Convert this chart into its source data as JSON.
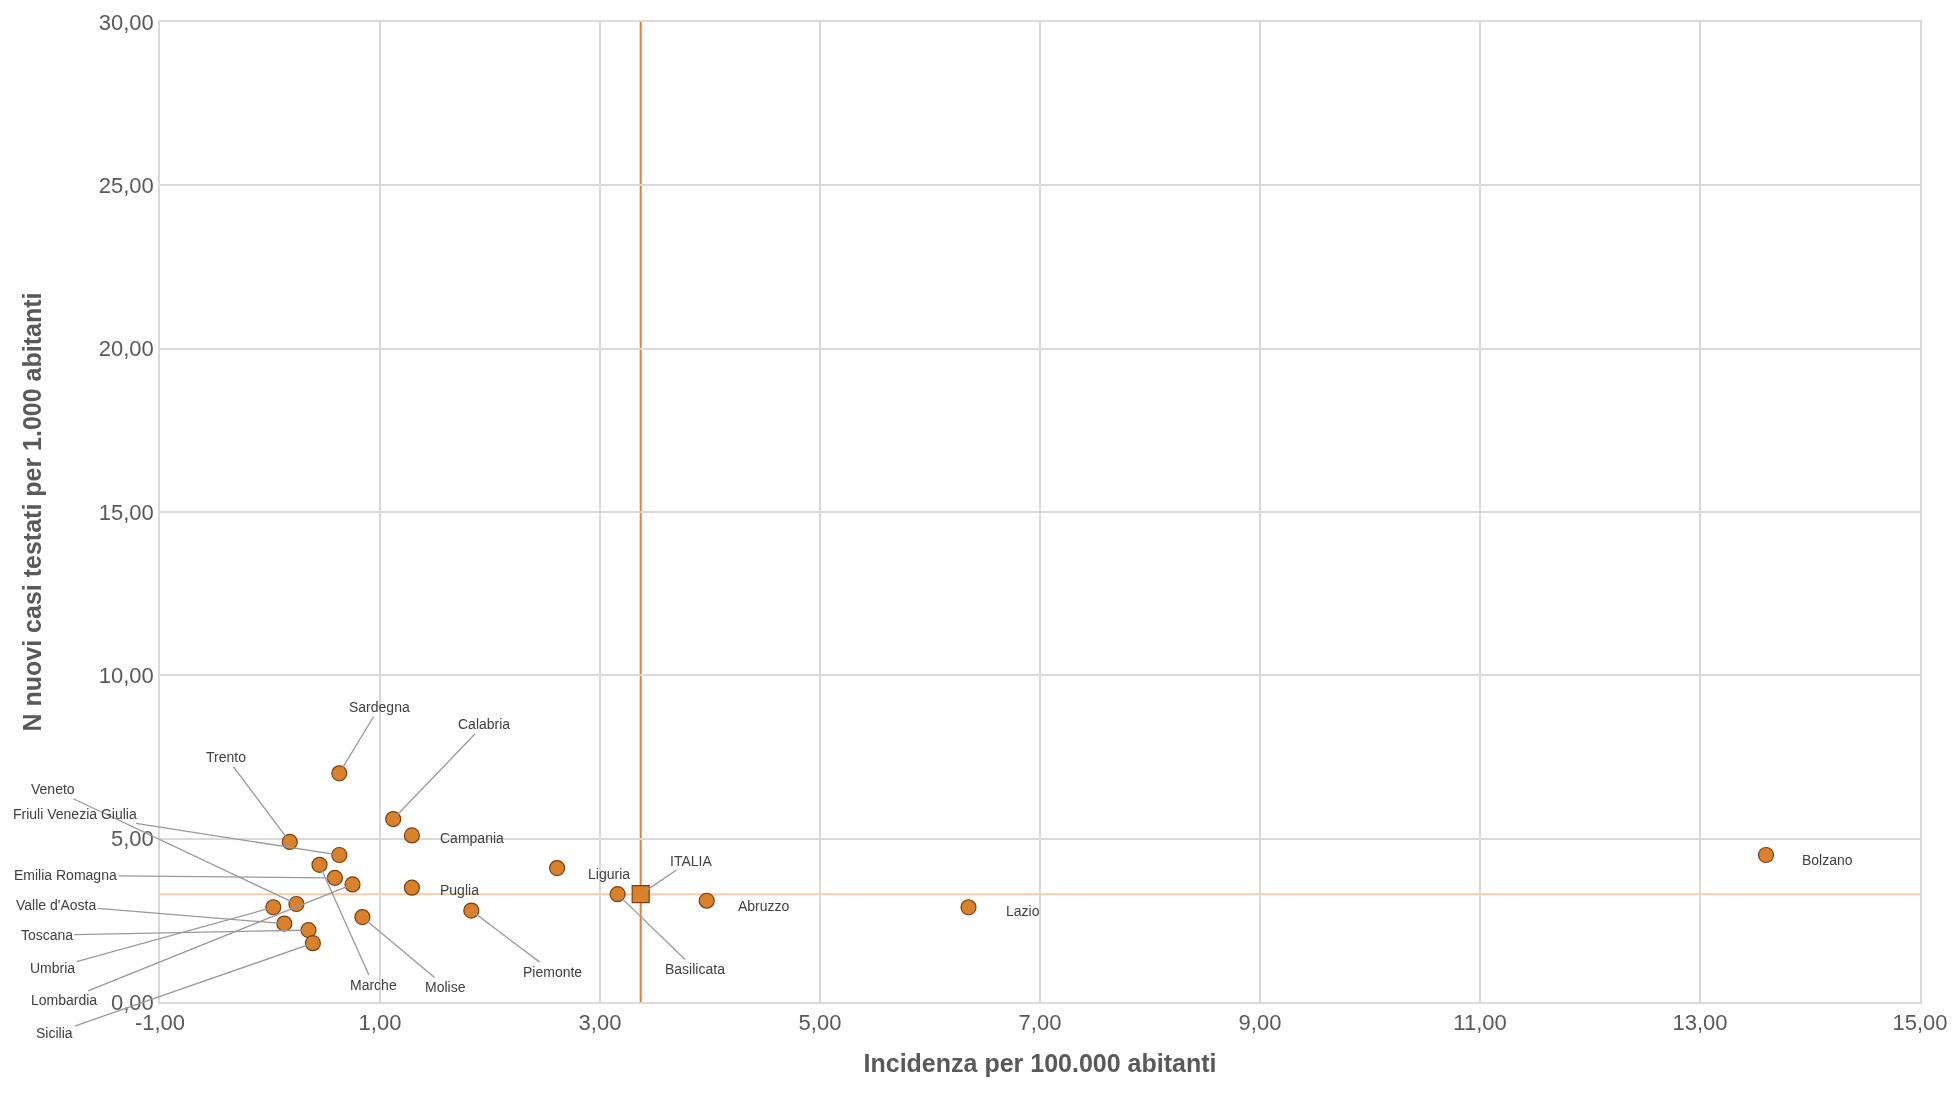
{
  "chart_data": {
    "type": "scatter",
    "xlabel": "Incidenza per 100.000 abitanti",
    "ylabel": "N nuovi casi testati per 1.000 abitanti",
    "xlim": [
      -1,
      15
    ],
    "xticks": [
      {
        "value": -1,
        "label": "-1,00"
      },
      {
        "value": 1,
        "label": "1,00"
      },
      {
        "value": 3,
        "label": "3,00"
      },
      {
        "value": 5,
        "label": "5,00"
      },
      {
        "value": 7,
        "label": "7,00"
      },
      {
        "value": 9,
        "label": "9,00"
      },
      {
        "value": 11,
        "label": "11,00"
      },
      {
        "value": 13,
        "label": "13,00"
      },
      {
        "value": 15,
        "label": "15,00"
      }
    ],
    "ylim": [
      0,
      30
    ],
    "yticks": [
      {
        "value": 0,
        "label": "0,00"
      },
      {
        "value": 5,
        "label": "5,00"
      },
      {
        "value": 10,
        "label": "10,00"
      },
      {
        "value": 15,
        "label": "15,00"
      },
      {
        "value": 20,
        "label": "20,00"
      },
      {
        "value": 25,
        "label": "25,00"
      },
      {
        "value": 30,
        "label": "30,00"
      }
    ],
    "grid": true,
    "series": [
      {
        "color": "#d9822b",
        "marker": "circle",
        "x": [
          0.63,
          1.12,
          1.29,
          0.18,
          0.24,
          0.63,
          0.59,
          0.13,
          0.35,
          0.03,
          0.75,
          0.39,
          0.45,
          0.84,
          1.83,
          1.29,
          2.61,
          3.16,
          3.97,
          6.35,
          13.6
        ],
        "values": [
          7.0,
          5.6,
          5.1,
          4.9,
          3.0,
          4.5,
          3.8,
          2.4,
          2.2,
          2.9,
          3.6,
          1.8,
          4.2,
          2.6,
          2.8,
          3.5,
          4.1,
          3.3,
          3.1,
          2.9,
          4.5
        ]
      },
      {
        "color": "#d9822b",
        "marker": "square",
        "x": [
          3.37
        ],
        "values": [
          3.3
        ]
      }
    ],
    "ref_lines": [
      {
        "axis": "x",
        "value": 3.37,
        "color": "#ed7d31"
      },
      {
        "axis": "y",
        "value": 3.3,
        "color": "#f8cbad"
      }
    ],
    "annotations": [
      {
        "text": "Sardegna",
        "x": 0.63,
        "y": 7.0
      },
      {
        "text": "Calabria",
        "x": 1.12,
        "y": 5.6
      },
      {
        "text": "Campania",
        "x": 1.29,
        "y": 5.1
      },
      {
        "text": "Trento",
        "x": 0.18,
        "y": 4.9
      },
      {
        "text": "Veneto",
        "x": 0.24,
        "y": 3.0
      },
      {
        "text": "Friuli Venezia Giulia",
        "x": 0.63,
        "y": 4.5
      },
      {
        "text": "Emilia Romagna",
        "x": 0.59,
        "y": 3.8
      },
      {
        "text": "Valle d'Aosta",
        "x": 0.13,
        "y": 2.4
      },
      {
        "text": "Toscana",
        "x": 0.35,
        "y": 2.2
      },
      {
        "text": "Umbria",
        "x": 0.03,
        "y": 2.9
      },
      {
        "text": "Lombardia",
        "x": 0.75,
        "y": 3.6
      },
      {
        "text": "Sicilia",
        "x": 0.39,
        "y": 1.8
      },
      {
        "text": "Marche",
        "x": 0.45,
        "y": 4.2
      },
      {
        "text": "Molise",
        "x": 0.84,
        "y": 2.6
      },
      {
        "text": "Piemonte",
        "x": 1.83,
        "y": 2.8
      },
      {
        "text": "Puglia",
        "x": 1.29,
        "y": 3.5
      },
      {
        "text": "Liguria",
        "x": 2.61,
        "y": 4.1
      },
      {
        "text": "Basilicata",
        "x": 3.16,
        "y": 3.3
      },
      {
        "text": "Abruzzo",
        "x": 3.97,
        "y": 3.1
      },
      {
        "text": "Lazio",
        "x": 6.35,
        "y": 2.9
      },
      {
        "text": "Bolzano",
        "x": 13.6,
        "y": 4.5
      },
      {
        "text": "ITALIA",
        "x": 3.37,
        "y": 3.3
      }
    ]
  }
}
